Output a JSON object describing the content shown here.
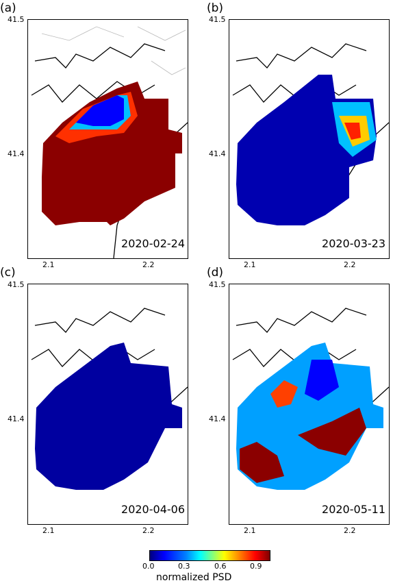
{
  "panels": [
    {
      "label": "(a)",
      "date": "2020-02-24",
      "y_top": "41.5",
      "y_mid": "41.4",
      "x_left": "2.1",
      "x_right": "2.2"
    },
    {
      "label": "(b)",
      "date": "2020-03-23",
      "y_top": "41.5",
      "y_mid": "41.4",
      "x_left": "2.1",
      "x_right": "2.2"
    },
    {
      "label": "(c)",
      "date": "2020-04-06",
      "y_top": "41.5",
      "y_mid": "41.4",
      "x_left": "2.1",
      "x_right": "2.2"
    },
    {
      "label": "(d)",
      "date": "2020-05-11",
      "y_top": "41.5",
      "y_mid": "41.4",
      "x_left": "2.1",
      "x_right": "2.2"
    }
  ],
  "colorbar": {
    "ticks": [
      "0.0",
      "0.3",
      "0.6",
      "0.9"
    ],
    "title": "normalized PSD",
    "colormap": "jet",
    "range": [
      0.0,
      1.0
    ]
  }
}
